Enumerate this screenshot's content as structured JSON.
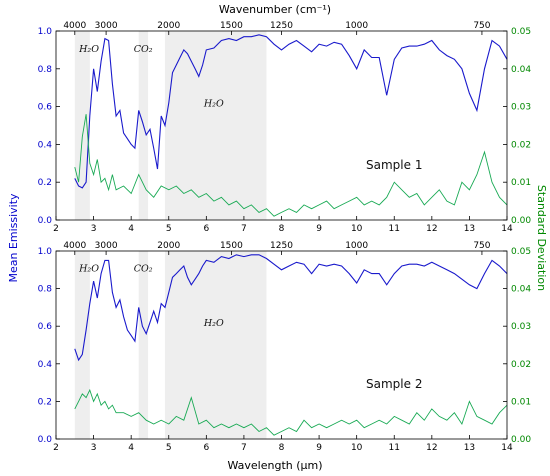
{
  "chart_data": [
    {
      "type": "line",
      "title": "",
      "xlabel": "Wavelength (μm)",
      "top_axis_label": "Wavenumber (cm⁻¹)",
      "ylabel_left": "Mean Emissivity",
      "ylabel_right": "Standard Deviation",
      "xlim": [
        2,
        14
      ],
      "ylim_left": [
        0,
        1.0
      ],
      "ylim_right": [
        0,
        0.05
      ],
      "x_ticks": [
        2,
        3,
        4,
        5,
        6,
        7,
        8,
        9,
        10,
        11,
        12,
        13,
        14
      ],
      "y_left_ticks": [
        "0.0",
        "0.2",
        "0.4",
        "0.6",
        "0.8",
        "1.0"
      ],
      "y_right_ticks": [
        "0.00",
        "0.01",
        "0.02",
        "0.03",
        "0.04",
        "0.05"
      ],
      "top_ticks": [
        {
          "label": "4000",
          "x": 2.5
        },
        {
          "label": "3000",
          "x": 3.333
        },
        {
          "label": "2000",
          "x": 5
        },
        {
          "label": "1500",
          "x": 6.667
        },
        {
          "label": "1250",
          "x": 8
        },
        {
          "label": "1000",
          "x": 10
        },
        {
          "label": "750",
          "x": 13.333
        }
      ],
      "bands": [
        [
          2.5,
          2.9
        ],
        [
          4.2,
          4.45
        ],
        [
          4.9,
          7.6
        ]
      ],
      "annotations": [
        {
          "text": "H₂O",
          "x": 2.88,
          "y": 0.89
        },
        {
          "text": "CO₂",
          "x": 4.32,
          "y": 0.89
        },
        {
          "text": "H₂O",
          "x": 6.2,
          "y": 0.6
        }
      ],
      "panel_label": "Sample 1",
      "series": [
        {
          "axis": "left",
          "color": "#1a1acc",
          "x": [
            2.5,
            2.6,
            2.7,
            2.8,
            2.9,
            3.0,
            3.1,
            3.2,
            3.3,
            3.4,
            3.5,
            3.6,
            3.7,
            3.8,
            3.9,
            4.0,
            4.1,
            4.2,
            4.3,
            4.4,
            4.5,
            4.6,
            4.7,
            4.8,
            4.9,
            5.0,
            5.1,
            5.2,
            5.3,
            5.4,
            5.5,
            5.6,
            5.7,
            5.8,
            5.9,
            6.0,
            6.2,
            6.4,
            6.6,
            6.8,
            7.0,
            7.2,
            7.4,
            7.6,
            7.8,
            8.0,
            8.2,
            8.4,
            8.6,
            8.8,
            9.0,
            9.2,
            9.4,
            9.6,
            9.8,
            10.0,
            10.2,
            10.4,
            10.6,
            10.8,
            11.0,
            11.2,
            11.4,
            11.6,
            11.8,
            12.0,
            12.2,
            12.4,
            12.6,
            12.8,
            13.0,
            13.2,
            13.4,
            13.6,
            13.8,
            14.0
          ],
          "values": [
            0.22,
            0.18,
            0.17,
            0.2,
            0.55,
            0.8,
            0.68,
            0.84,
            0.96,
            0.95,
            0.72,
            0.55,
            0.58,
            0.46,
            0.43,
            0.4,
            0.38,
            0.58,
            0.52,
            0.45,
            0.48,
            0.38,
            0.27,
            0.55,
            0.5,
            0.62,
            0.78,
            0.82,
            0.86,
            0.9,
            0.88,
            0.84,
            0.8,
            0.76,
            0.82,
            0.9,
            0.91,
            0.95,
            0.96,
            0.95,
            0.97,
            0.97,
            0.98,
            0.97,
            0.93,
            0.9,
            0.93,
            0.95,
            0.92,
            0.89,
            0.93,
            0.92,
            0.94,
            0.93,
            0.87,
            0.8,
            0.9,
            0.86,
            0.86,
            0.66,
            0.85,
            0.91,
            0.92,
            0.92,
            0.93,
            0.95,
            0.9,
            0.87,
            0.85,
            0.8,
            0.67,
            0.58,
            0.8,
            0.95,
            0.92,
            0.85
          ]
        },
        {
          "axis": "right",
          "color": "#1aaa55",
          "x": [
            2.5,
            2.6,
            2.7,
            2.8,
            2.9,
            3.0,
            3.1,
            3.2,
            3.3,
            3.4,
            3.5,
            3.6,
            3.8,
            4.0,
            4.2,
            4.4,
            4.6,
            4.8,
            5.0,
            5.2,
            5.4,
            5.6,
            5.8,
            6.0,
            6.2,
            6.4,
            6.6,
            6.8,
            7.0,
            7.2,
            7.4,
            7.6,
            7.8,
            8.0,
            8.2,
            8.4,
            8.6,
            8.8,
            9.0,
            9.2,
            9.4,
            9.6,
            9.8,
            10.0,
            10.2,
            10.4,
            10.6,
            10.8,
            11.0,
            11.2,
            11.4,
            11.6,
            11.8,
            12.0,
            12.2,
            12.4,
            12.6,
            12.8,
            13.0,
            13.2,
            13.4,
            13.6,
            13.8,
            14.0
          ],
          "values": [
            0.014,
            0.01,
            0.022,
            0.028,
            0.015,
            0.012,
            0.016,
            0.01,
            0.011,
            0.008,
            0.012,
            0.008,
            0.009,
            0.007,
            0.012,
            0.008,
            0.006,
            0.009,
            0.008,
            0.009,
            0.007,
            0.008,
            0.006,
            0.007,
            0.005,
            0.006,
            0.004,
            0.005,
            0.003,
            0.004,
            0.002,
            0.003,
            0.001,
            0.002,
            0.003,
            0.002,
            0.004,
            0.003,
            0.004,
            0.005,
            0.003,
            0.004,
            0.005,
            0.006,
            0.004,
            0.005,
            0.004,
            0.006,
            0.01,
            0.008,
            0.006,
            0.007,
            0.004,
            0.006,
            0.008,
            0.005,
            0.004,
            0.01,
            0.008,
            0.012,
            0.018,
            0.01,
            0.006,
            0.004
          ]
        }
      ]
    },
    {
      "type": "line",
      "title": "",
      "xlabel": "Wavelength (μm)",
      "top_axis_label": "",
      "ylabel_left": "Mean Emissivity",
      "ylabel_right": "Standard Deviation",
      "xlim": [
        2,
        14
      ],
      "ylim_left": [
        0,
        1.0
      ],
      "ylim_right": [
        0,
        0.05
      ],
      "x_ticks": [
        2,
        3,
        4,
        5,
        6,
        7,
        8,
        9,
        10,
        11,
        12,
        13,
        14
      ],
      "y_left_ticks": [
        "0.0",
        "0.2",
        "0.4",
        "0.6",
        "0.8",
        "1.0"
      ],
      "y_right_ticks": [
        "0.00",
        "0.01",
        "0.02",
        "0.03",
        "0.04",
        "0.05"
      ],
      "top_ticks": [
        {
          "label": "4000",
          "x": 2.5
        },
        {
          "label": "3000",
          "x": 3.333
        },
        {
          "label": "2000",
          "x": 5
        },
        {
          "label": "1500",
          "x": 6.667
        },
        {
          "label": "1250",
          "x": 8
        },
        {
          "label": "1000",
          "x": 10
        },
        {
          "label": "750",
          "x": 13.333
        }
      ],
      "bands": [
        [
          2.5,
          2.9
        ],
        [
          4.2,
          4.45
        ],
        [
          4.9,
          7.6
        ]
      ],
      "annotations": [
        {
          "text": "H₂O",
          "x": 2.88,
          "y": 0.89
        },
        {
          "text": "CO₂",
          "x": 4.32,
          "y": 0.89
        },
        {
          "text": "H₂O",
          "x": 6.2,
          "y": 0.6
        }
      ],
      "panel_label": "Sample 2",
      "series": [
        {
          "axis": "left",
          "color": "#1a1acc",
          "x": [
            2.5,
            2.6,
            2.7,
            2.8,
            2.9,
            3.0,
            3.1,
            3.2,
            3.3,
            3.4,
            3.5,
            3.6,
            3.7,
            3.8,
            3.9,
            4.0,
            4.1,
            4.2,
            4.3,
            4.4,
            4.5,
            4.6,
            4.7,
            4.8,
            4.9,
            5.0,
            5.1,
            5.2,
            5.3,
            5.4,
            5.5,
            5.6,
            5.7,
            5.8,
            5.9,
            6.0,
            6.2,
            6.4,
            6.6,
            6.8,
            7.0,
            7.2,
            7.4,
            7.6,
            7.8,
            8.0,
            8.2,
            8.4,
            8.6,
            8.8,
            9.0,
            9.2,
            9.4,
            9.6,
            9.8,
            10.0,
            10.2,
            10.4,
            10.6,
            10.8,
            11.0,
            11.2,
            11.4,
            11.6,
            11.8,
            12.0,
            12.2,
            12.4,
            12.6,
            12.8,
            13.0,
            13.2,
            13.4,
            13.6,
            13.8,
            14.0
          ],
          "values": [
            0.48,
            0.42,
            0.45,
            0.58,
            0.72,
            0.84,
            0.75,
            0.88,
            0.95,
            0.95,
            0.78,
            0.7,
            0.74,
            0.65,
            0.58,
            0.55,
            0.52,
            0.7,
            0.6,
            0.56,
            0.62,
            0.68,
            0.62,
            0.72,
            0.7,
            0.78,
            0.86,
            0.88,
            0.9,
            0.92,
            0.86,
            0.82,
            0.85,
            0.88,
            0.92,
            0.95,
            0.94,
            0.97,
            0.96,
            0.98,
            0.97,
            0.98,
            0.98,
            0.96,
            0.93,
            0.9,
            0.92,
            0.94,
            0.93,
            0.88,
            0.93,
            0.92,
            0.93,
            0.92,
            0.88,
            0.83,
            0.9,
            0.88,
            0.88,
            0.82,
            0.88,
            0.92,
            0.93,
            0.93,
            0.92,
            0.94,
            0.92,
            0.9,
            0.88,
            0.85,
            0.82,
            0.8,
            0.88,
            0.95,
            0.92,
            0.88
          ]
        },
        {
          "axis": "right",
          "color": "#1aaa55",
          "x": [
            2.5,
            2.6,
            2.7,
            2.8,
            2.9,
            3.0,
            3.1,
            3.2,
            3.3,
            3.4,
            3.5,
            3.6,
            3.8,
            4.0,
            4.2,
            4.4,
            4.6,
            4.8,
            5.0,
            5.2,
            5.4,
            5.6,
            5.8,
            6.0,
            6.2,
            6.4,
            6.6,
            6.8,
            7.0,
            7.2,
            7.4,
            7.6,
            7.8,
            8.0,
            8.2,
            8.4,
            8.6,
            8.8,
            9.0,
            9.2,
            9.4,
            9.6,
            9.8,
            10.0,
            10.2,
            10.4,
            10.6,
            10.8,
            11.0,
            11.2,
            11.4,
            11.6,
            11.8,
            12.0,
            12.2,
            12.4,
            12.6,
            12.8,
            13.0,
            13.2,
            13.4,
            13.6,
            13.8,
            14.0
          ],
          "values": [
            0.008,
            0.01,
            0.012,
            0.011,
            0.013,
            0.01,
            0.012,
            0.009,
            0.01,
            0.008,
            0.009,
            0.007,
            0.007,
            0.006,
            0.007,
            0.005,
            0.004,
            0.005,
            0.004,
            0.006,
            0.005,
            0.011,
            0.004,
            0.005,
            0.003,
            0.004,
            0.003,
            0.004,
            0.003,
            0.004,
            0.002,
            0.003,
            0.001,
            0.002,
            0.003,
            0.002,
            0.005,
            0.003,
            0.004,
            0.003,
            0.004,
            0.005,
            0.004,
            0.005,
            0.003,
            0.004,
            0.005,
            0.004,
            0.006,
            0.005,
            0.004,
            0.007,
            0.005,
            0.008,
            0.006,
            0.005,
            0.007,
            0.004,
            0.01,
            0.006,
            0.005,
            0.004,
            0.007,
            0.009
          ]
        }
      ]
    }
  ]
}
